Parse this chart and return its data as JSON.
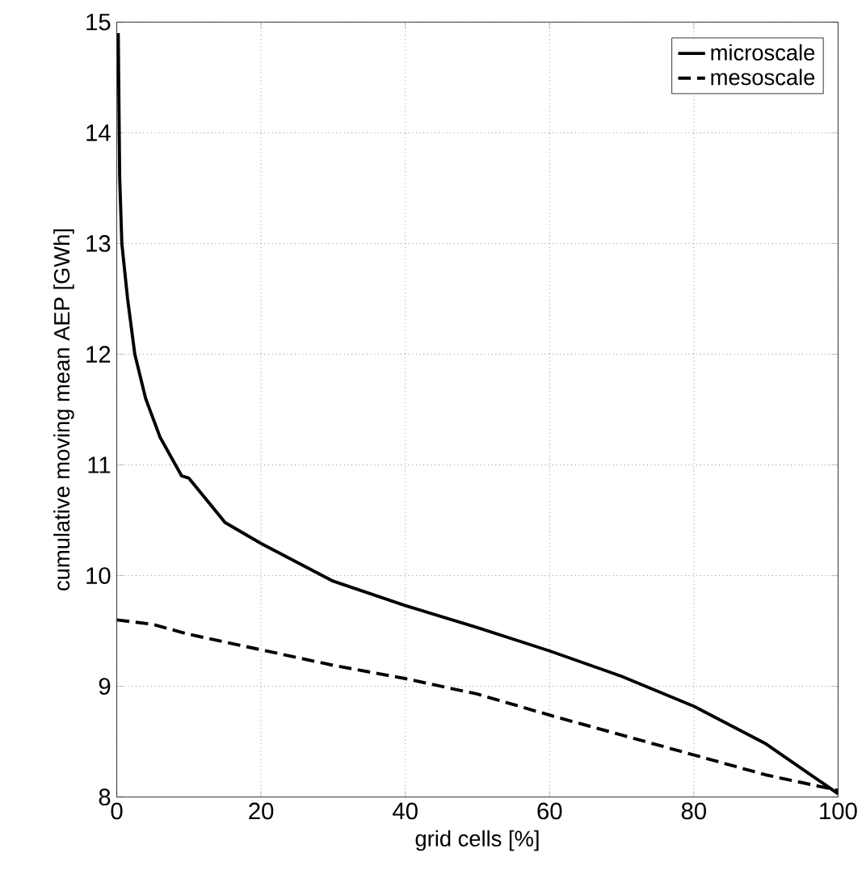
{
  "chart_data": {
    "type": "line",
    "xlabel": "grid cells [%]",
    "ylabel": "cumulative moving mean AEP [GWh]",
    "xlim": [
      0,
      100
    ],
    "ylim": [
      8,
      15
    ],
    "xticks": [
      0,
      20,
      40,
      60,
      80,
      100
    ],
    "yticks": [
      8,
      9,
      10,
      11,
      12,
      13,
      14,
      15
    ],
    "grid": true,
    "legend": "top right",
    "series": [
      {
        "name": "microscale",
        "color": "#000000",
        "line_style": "solid",
        "x": [
          0.2,
          0.4,
          0.7,
          1.5,
          2.5,
          4,
          6,
          9,
          10,
          15,
          20,
          30,
          40,
          50,
          60,
          70,
          80,
          90,
          100
        ],
        "values": [
          14.9,
          13.6,
          13.0,
          12.5,
          12.0,
          11.6,
          11.25,
          10.9,
          10.88,
          10.48,
          10.29,
          9.95,
          9.73,
          9.53,
          9.32,
          9.09,
          8.82,
          8.48,
          8.03
        ]
      },
      {
        "name": "mesoscale",
        "color": "#000000",
        "line_style": "dashed",
        "x": [
          0,
          5,
          10,
          20,
          30,
          40,
          50,
          60,
          70,
          80,
          90,
          100
        ],
        "values": [
          9.6,
          9.56,
          9.47,
          9.33,
          9.19,
          9.07,
          8.93,
          8.74,
          8.56,
          8.38,
          8.2,
          8.06
        ]
      }
    ]
  }
}
